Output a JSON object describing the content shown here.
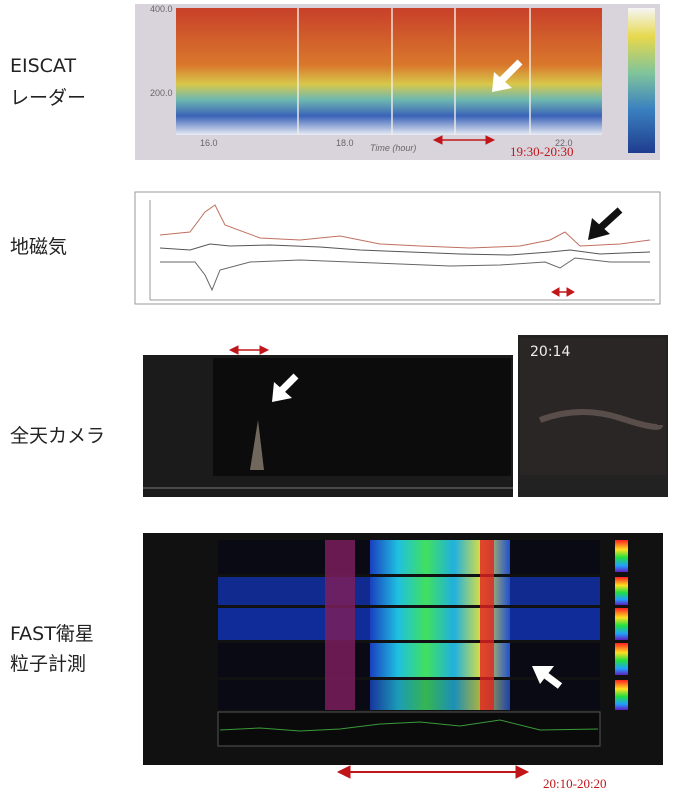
{
  "panels": [
    {
      "label": [
        "EISCAT",
        "レーダー"
      ],
      "axis_labels": [
        "400.0",
        "200.0",
        "16.0",
        "18.0",
        "Time (hour)",
        "22.0"
      ],
      "time_range": "19:30-20:30"
    },
    {
      "label": [
        "地磁気"
      ]
    },
    {
      "label": [
        "全天カメラ"
      ],
      "time_stamp": "20:14"
    },
    {
      "label": [
        "FAST衛星",
        "粒子計測"
      ],
      "time_range": "20:10-20:20"
    }
  ]
}
